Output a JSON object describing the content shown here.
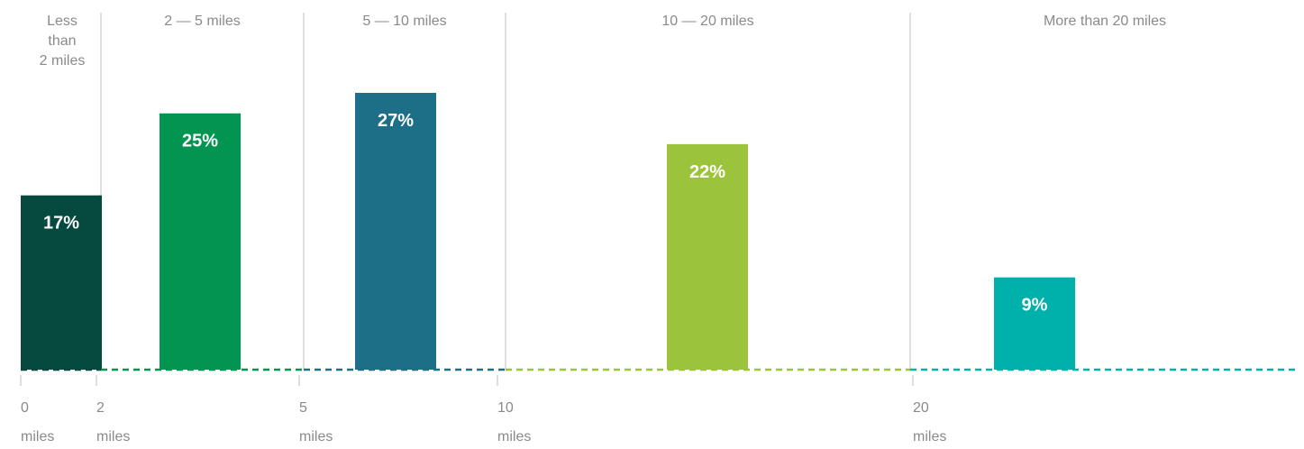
{
  "chart_data": {
    "type": "bar",
    "xlabel": "",
    "ylabel": "",
    "ylim": [
      0,
      30
    ],
    "grid": false,
    "legend": "none",
    "categories": [
      "Less than 2 miles",
      "2 — 5 miles",
      "5 — 10 miles",
      "10 — 20 miles",
      "More than 20 miles"
    ],
    "category_lines": [
      [
        "Less",
        "than",
        "2 miles"
      ],
      [
        "2 — 5 miles"
      ],
      [
        "5 — 10 miles"
      ],
      [
        "10 — 20 miles"
      ],
      [
        "More than 20 miles"
      ]
    ],
    "values": [
      17,
      25,
      27,
      22,
      9
    ],
    "value_labels": [
      "17%",
      "25%",
      "27%",
      "22%",
      "9%"
    ],
    "colors": [
      "#05493f",
      "#029552",
      "#1c6f86",
      "#9bc33c",
      "#00b0ab"
    ],
    "x_ticks": [
      {
        "value": 0,
        "lines": [
          "0",
          "miles"
        ]
      },
      {
        "value": 2,
        "lines": [
          "2",
          "miles"
        ]
      },
      {
        "value": 5,
        "lines": [
          "5",
          "miles"
        ]
      },
      {
        "value": 10,
        "lines": [
          "10",
          "miles"
        ]
      },
      {
        "value": 20,
        "lines": [
          "20",
          "miles"
        ]
      }
    ]
  }
}
